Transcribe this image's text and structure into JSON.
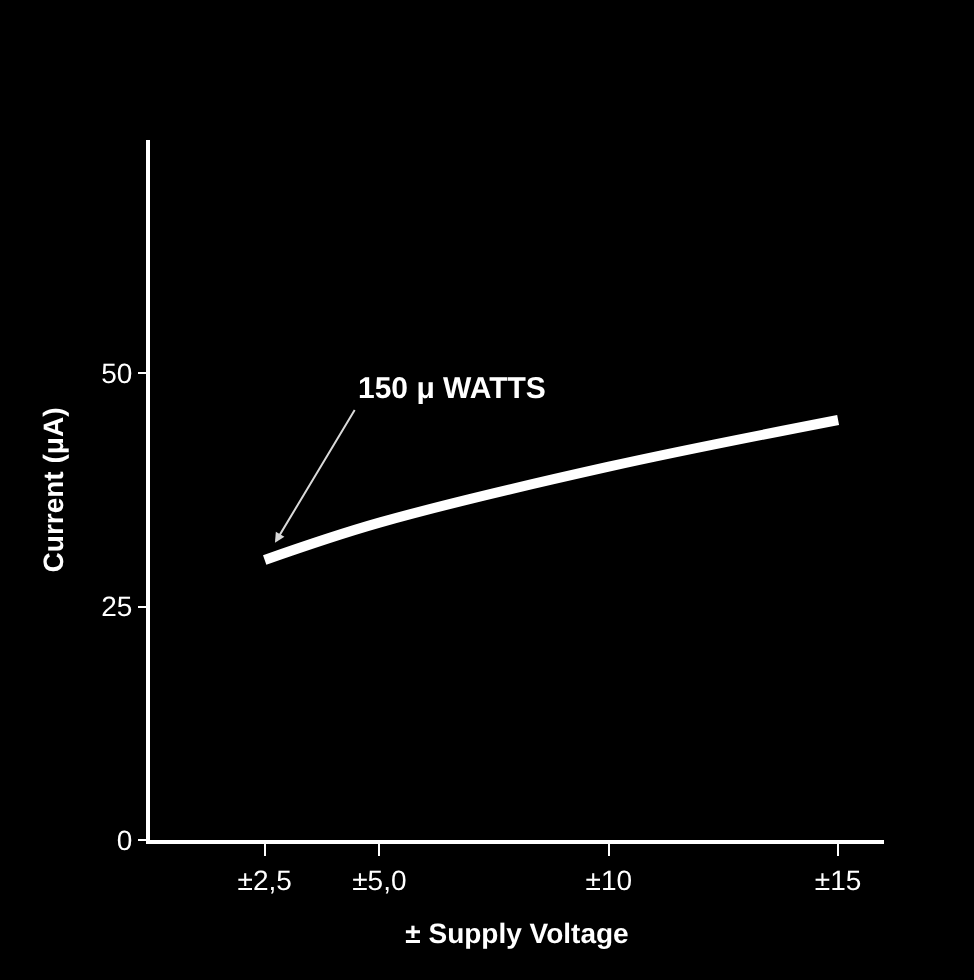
{
  "chart_data": {
    "type": "line",
    "xlabel": "± Supply Voltage",
    "ylabel": "Current (μA)",
    "x": [
      2.5,
      5,
      10,
      15
    ],
    "series": [
      {
        "color": "#ffffff",
        "values": [
          30,
          34,
          40,
          45
        ]
      }
    ],
    "xlim": [
      0,
      16
    ],
    "ylim": [
      0,
      75
    ],
    "xticks": [
      {
        "value": 2.5,
        "label": "±2,5"
      },
      {
        "value": 5,
        "label": "±5,0"
      },
      {
        "value": 10,
        "label": "±10"
      },
      {
        "value": 15,
        "label": "±15"
      }
    ],
    "yticks": [
      0,
      25,
      50
    ],
    "annotations": [
      {
        "text": "150 μ WATTS",
        "x": 2.5,
        "y": 30
      }
    ],
    "grid": false,
    "marker": "none",
    "line_style": "solid"
  }
}
